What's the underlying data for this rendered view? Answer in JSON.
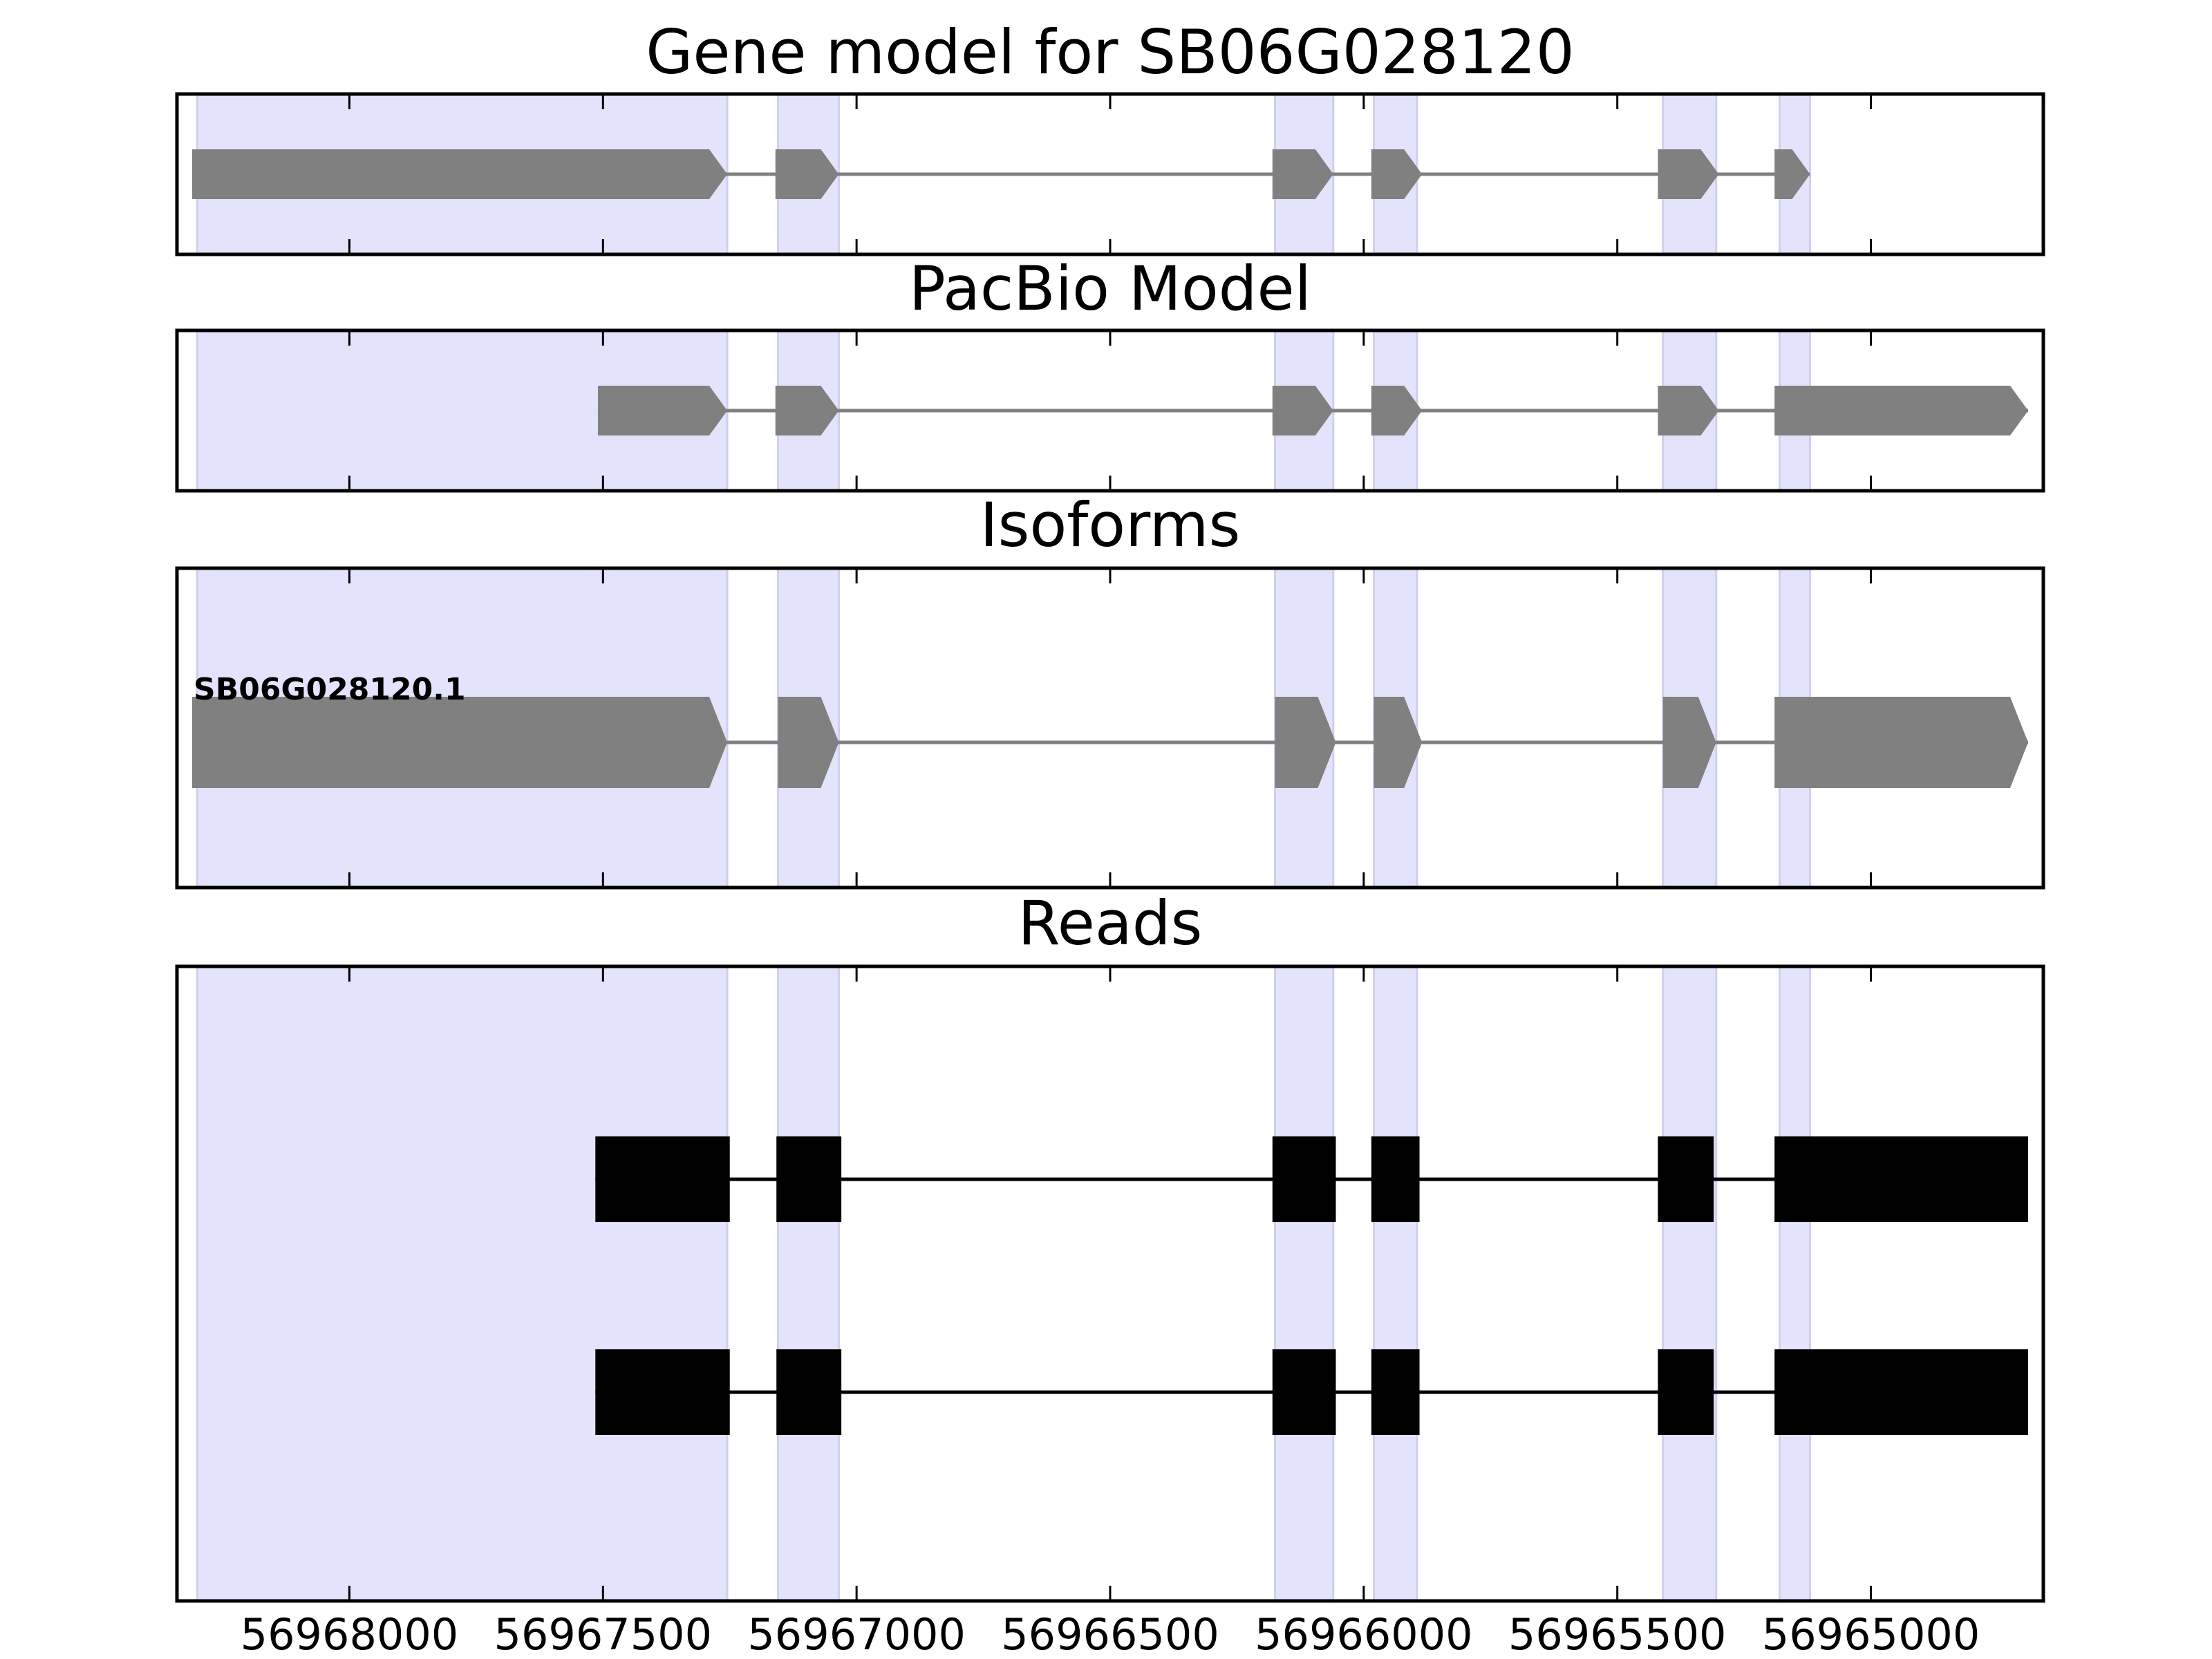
{
  "chart_data": {
    "type": "gene-structure",
    "xlim": [
      56968340,
      56964660
    ],
    "x_reversed": true,
    "xticks": [
      56968000,
      56967500,
      56967000,
      56966500,
      56966000,
      56965500,
      56965000
    ],
    "xtick_labels": [
      "56968000",
      "56967500",
      "56967000",
      "56966500",
      "56966000",
      "56965500",
      "56965000"
    ],
    "highlight_color": "#e3e3fc",
    "highlight_regions": [
      [
        56968300,
        56967255
      ],
      [
        56967155,
        56967035
      ],
      [
        56966175,
        56966060
      ],
      [
        56965980,
        56965895
      ],
      [
        56965410,
        56965305
      ],
      [
        56965180,
        56965120
      ]
    ],
    "panels": [
      {
        "title": "Gene model for SB06G028120",
        "kind": "model",
        "color": "#808080",
        "tracks": [
          {
            "label": "",
            "exons": [
              [
                56968310,
                56967255
              ],
              [
                56967160,
                56967035
              ],
              [
                56966180,
                56966060
              ],
              [
                56965985,
                56965885
              ],
              [
                56965420,
                56965300
              ],
              [
                56965190,
                56965120
              ]
            ]
          }
        ]
      },
      {
        "title": "PacBio Model",
        "kind": "model",
        "color": "#808080",
        "tracks": [
          {
            "label": "",
            "exons": [
              [
                56967510,
                56967255
              ],
              [
                56967160,
                56967035
              ],
              [
                56966180,
                56966060
              ],
              [
                56965985,
                56965885
              ],
              [
                56965420,
                56965300
              ],
              [
                56965190,
                56964690
              ]
            ]
          }
        ]
      },
      {
        "title": "Isoforms",
        "kind": "model",
        "color": "#808080",
        "tracks": [
          {
            "label": "SB06G028120.1",
            "exons": [
              [
                56968310,
                56967255
              ],
              [
                56967155,
                56967035
              ],
              [
                56966175,
                56966055
              ],
              [
                56965980,
                56965885
              ],
              [
                56965410,
                56965305
              ],
              [
                56965190,
                56964690
              ]
            ]
          }
        ]
      },
      {
        "title": "Reads",
        "kind": "reads",
        "color": "#000000",
        "tracks": [
          {
            "label": "",
            "exons": [
              [
                56967515,
                56967250
              ],
              [
                56967158,
                56967030
              ],
              [
                56966180,
                56966055
              ],
              [
                56965985,
                56965890
              ],
              [
                56965420,
                56965310
              ],
              [
                56965190,
                56964690
              ]
            ]
          },
          {
            "label": "",
            "exons": [
              [
                56967515,
                56967250
              ],
              [
                56967158,
                56967030
              ],
              [
                56966180,
                56966055
              ],
              [
                56965985,
                56965890
              ],
              [
                56965420,
                56965310
              ],
              [
                56965190,
                56964690
              ]
            ]
          }
        ]
      }
    ]
  }
}
